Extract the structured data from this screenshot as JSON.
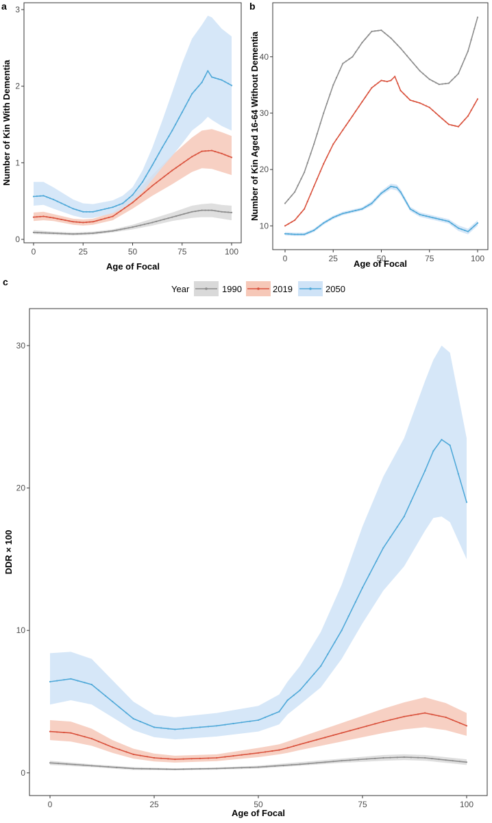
{
  "colors": {
    "1990": "#8c8c8c",
    "2019": "#d9513c",
    "2050": "#4ea8d8",
    "band_1990": "#d9d9d9",
    "band_2019": "#f6c8b8",
    "band_2050": "#cfe3f7"
  },
  "legend": {
    "title": "Year",
    "labels": [
      "1990",
      "2019",
      "2050"
    ]
  },
  "chart_data": [
    {
      "id": "a",
      "panel_label": "a",
      "type": "line",
      "xlabel": "Age of Focal",
      "ylabel": "Number of Kin With Dementia",
      "xlim": [
        0,
        100
      ],
      "ylim": [
        0,
        3
      ],
      "xticks": [
        0,
        25,
        50,
        75,
        100
      ],
      "yticks": [
        0,
        1,
        2,
        3
      ],
      "series": [
        {
          "name": "1990",
          "x": [
            0,
            10,
            20,
            30,
            40,
            50,
            60,
            70,
            80,
            85,
            90,
            95,
            100
          ],
          "y": [
            0.09,
            0.08,
            0.07,
            0.08,
            0.11,
            0.16,
            0.22,
            0.29,
            0.36,
            0.38,
            0.38,
            0.36,
            0.35
          ],
          "lower": [
            0.07,
            0.06,
            0.05,
            0.06,
            0.09,
            0.13,
            0.18,
            0.24,
            0.28,
            0.29,
            0.29,
            0.27,
            0.25
          ],
          "upper": [
            0.12,
            0.1,
            0.09,
            0.1,
            0.13,
            0.19,
            0.27,
            0.35,
            0.44,
            0.46,
            0.47,
            0.45,
            0.44
          ]
        },
        {
          "name": "2019",
          "x": [
            0,
            5,
            10,
            20,
            25,
            30,
            40,
            50,
            60,
            70,
            80,
            85,
            90,
            95,
            100
          ],
          "y": [
            0.29,
            0.3,
            0.28,
            0.23,
            0.22,
            0.23,
            0.3,
            0.48,
            0.7,
            0.9,
            1.08,
            1.15,
            1.16,
            1.12,
            1.07
          ],
          "lower": [
            0.24,
            0.25,
            0.24,
            0.19,
            0.18,
            0.19,
            0.25,
            0.4,
            0.57,
            0.72,
            0.88,
            0.93,
            0.92,
            0.88,
            0.84
          ],
          "upper": [
            0.35,
            0.36,
            0.33,
            0.27,
            0.26,
            0.27,
            0.35,
            0.57,
            0.84,
            1.1,
            1.33,
            1.42,
            1.44,
            1.4,
            1.35
          ]
        },
        {
          "name": "2050",
          "x": [
            0,
            5,
            10,
            20,
            25,
            30,
            40,
            45,
            50,
            55,
            60,
            65,
            70,
            75,
            80,
            85,
            88,
            90,
            95,
            100
          ],
          "y": [
            0.56,
            0.57,
            0.52,
            0.4,
            0.36,
            0.36,
            0.42,
            0.47,
            0.58,
            0.75,
            0.97,
            1.2,
            1.42,
            1.66,
            1.9,
            2.05,
            2.2,
            2.12,
            2.08,
            2.01
          ],
          "lower": [
            0.44,
            0.45,
            0.4,
            0.31,
            0.28,
            0.28,
            0.34,
            0.4,
            0.5,
            0.62,
            0.78,
            0.94,
            1.09,
            1.25,
            1.42,
            1.52,
            1.6,
            1.56,
            1.48,
            1.42
          ],
          "upper": [
            0.75,
            0.75,
            0.68,
            0.52,
            0.47,
            0.46,
            0.51,
            0.57,
            0.68,
            0.9,
            1.2,
            1.55,
            1.92,
            2.3,
            2.62,
            2.8,
            2.92,
            2.9,
            2.75,
            2.65
          ]
        }
      ]
    },
    {
      "id": "b",
      "panel_label": "b",
      "type": "line",
      "xlabel": "Age of Focal",
      "ylabel": "Number of Kin Aged 16-64 Without Dementia",
      "xlim": [
        0,
        100
      ],
      "ylim": [
        7,
        48
      ],
      "xticks": [
        0,
        25,
        50,
        75,
        100
      ],
      "yticks": [
        10,
        20,
        30,
        40
      ],
      "series": [
        {
          "name": "1990",
          "x": [
            0,
            5,
            10,
            15,
            20,
            25,
            30,
            35,
            40,
            45,
            50,
            55,
            60,
            65,
            70,
            75,
            80,
            85,
            90,
            95,
            100
          ],
          "y": [
            14.0,
            16.0,
            19.5,
            24.5,
            30.0,
            35.0,
            38.8,
            40.0,
            42.5,
            44.5,
            44.7,
            43.3,
            41.5,
            39.5,
            37.5,
            36.0,
            35.1,
            35.3,
            37.0,
            41.0,
            47.0
          ]
        },
        {
          "name": "2019",
          "x": [
            0,
            5,
            10,
            15,
            20,
            25,
            30,
            35,
            40,
            45,
            50,
            53,
            55,
            57,
            60,
            65,
            70,
            75,
            80,
            85,
            90,
            95,
            100
          ],
          "y": [
            10.0,
            11.0,
            13.0,
            17.0,
            21.0,
            24.5,
            27.0,
            29.5,
            32.0,
            34.5,
            35.8,
            35.6,
            35.8,
            36.5,
            34.0,
            32.3,
            31.8,
            31.0,
            29.5,
            28.0,
            27.6,
            29.5,
            32.5
          ]
        },
        {
          "name": "2050",
          "x": [
            0,
            5,
            10,
            15,
            20,
            25,
            30,
            35,
            40,
            45,
            50,
            55,
            58,
            60,
            65,
            70,
            75,
            80,
            85,
            90,
            95,
            100
          ],
          "y": [
            8.6,
            8.5,
            8.5,
            9.2,
            10.5,
            11.5,
            12.2,
            12.6,
            13.0,
            14.0,
            15.8,
            17.0,
            16.8,
            16.0,
            13.0,
            12.0,
            11.6,
            11.2,
            10.8,
            9.6,
            9.0,
            10.5
          ],
          "lower": [
            8.3,
            8.2,
            8.2,
            8.9,
            10.2,
            11.2,
            11.9,
            12.3,
            12.7,
            13.6,
            15.4,
            16.5,
            16.3,
            15.5,
            12.6,
            11.6,
            11.2,
            10.8,
            10.4,
            9.1,
            8.5,
            10.0
          ],
          "upper": [
            8.9,
            8.8,
            8.8,
            9.5,
            10.8,
            11.8,
            12.5,
            12.9,
            13.3,
            14.4,
            16.2,
            17.5,
            17.3,
            16.5,
            13.4,
            12.4,
            12.0,
            11.6,
            11.2,
            10.1,
            9.5,
            11.0
          ]
        }
      ]
    },
    {
      "id": "c",
      "panel_label": "c",
      "type": "line",
      "xlabel": "Age of Focal",
      "ylabel": "DDR × 100",
      "xlim": [
        0,
        100
      ],
      "ylim": [
        -1.5,
        32.5
      ],
      "xticks": [
        0,
        25,
        50,
        75,
        100
      ],
      "yticks": [
        0,
        10,
        20,
        30
      ],
      "series": [
        {
          "name": "1990",
          "x": [
            0,
            10,
            20,
            30,
            40,
            50,
            60,
            70,
            80,
            85,
            90,
            95,
            100
          ],
          "y": [
            0.7,
            0.5,
            0.3,
            0.25,
            0.3,
            0.4,
            0.6,
            0.85,
            1.05,
            1.1,
            1.05,
            0.9,
            0.75
          ],
          "lower": [
            0.55,
            0.4,
            0.2,
            0.18,
            0.22,
            0.3,
            0.5,
            0.7,
            0.85,
            0.9,
            0.85,
            0.7,
            0.55
          ],
          "upper": [
            0.85,
            0.6,
            0.4,
            0.32,
            0.38,
            0.5,
            0.75,
            1.0,
            1.25,
            1.3,
            1.25,
            1.1,
            0.95
          ]
        },
        {
          "name": "2019",
          "x": [
            0,
            5,
            10,
            15,
            20,
            25,
            30,
            40,
            50,
            55,
            57,
            60,
            70,
            80,
            85,
            90,
            95,
            100
          ],
          "y": [
            2.9,
            2.8,
            2.4,
            1.8,
            1.3,
            1.05,
            0.95,
            1.05,
            1.4,
            1.6,
            1.75,
            2.0,
            2.8,
            3.6,
            3.95,
            4.2,
            3.9,
            3.3
          ],
          "lower": [
            2.3,
            2.2,
            1.9,
            1.4,
            1.0,
            0.8,
            0.72,
            0.82,
            1.1,
            1.3,
            1.4,
            1.6,
            2.2,
            2.8,
            3.05,
            3.2,
            3.0,
            2.6
          ],
          "upper": [
            3.7,
            3.6,
            3.1,
            2.3,
            1.7,
            1.35,
            1.2,
            1.3,
            1.75,
            2.0,
            2.2,
            2.5,
            3.5,
            4.5,
            4.95,
            5.3,
            4.9,
            4.2
          ]
        },
        {
          "name": "2050",
          "x": [
            0,
            5,
            10,
            15,
            20,
            25,
            30,
            40,
            50,
            55,
            57,
            60,
            65,
            70,
            75,
            80,
            85,
            90,
            92,
            94,
            96,
            100
          ],
          "y": [
            6.4,
            6.6,
            6.2,
            5.0,
            3.8,
            3.2,
            3.05,
            3.3,
            3.7,
            4.3,
            5.1,
            5.8,
            7.5,
            10.0,
            13.0,
            15.8,
            18.0,
            21.2,
            22.6,
            23.4,
            23.0,
            19.0
          ],
          "lower": [
            4.8,
            5.1,
            4.8,
            3.9,
            3.0,
            2.5,
            2.35,
            2.55,
            2.9,
            3.4,
            4.1,
            4.8,
            6.0,
            8.0,
            10.5,
            12.8,
            14.5,
            17.0,
            17.9,
            18.0,
            17.6,
            15.0
          ],
          "upper": [
            8.4,
            8.5,
            8.0,
            6.5,
            5.0,
            4.1,
            3.9,
            4.2,
            4.7,
            5.5,
            6.4,
            7.5,
            9.9,
            13.2,
            17.3,
            20.8,
            23.5,
            27.5,
            29.0,
            30.0,
            29.5,
            23.5
          ]
        }
      ]
    }
  ]
}
